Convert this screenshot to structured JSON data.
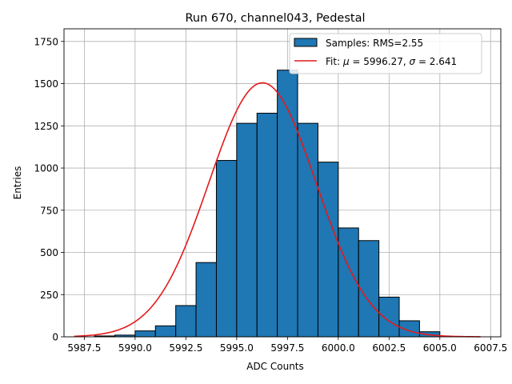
{
  "chart_data": {
    "type": "bar",
    "title": "Run 670, channel043, Pedestal",
    "xlabel": "ADC Counts",
    "ylabel": "Entries",
    "xlim": [
      5986.5,
      6008.0
    ],
    "ylim": [
      0,
      1825
    ],
    "grid": true,
    "legend_position": "top-right",
    "xticks": [
      "5987.5",
      "5990.0",
      "5992.5",
      "5995.0",
      "5997.5",
      "6000.0",
      "6002.5",
      "6005.0",
      "6007.5"
    ],
    "xtick_values": [
      5987.5,
      5990.0,
      5992.5,
      5995.0,
      5997.5,
      6000.0,
      6002.5,
      6005.0,
      6007.5
    ],
    "yticks": [
      "0",
      "250",
      "500",
      "750",
      "1000",
      "1250",
      "1500",
      "1750"
    ],
    "ytick_values": [
      0,
      250,
      500,
      750,
      1000,
      1250,
      1500,
      1750
    ],
    "histogram": {
      "name": "Samples: RMS=2.55",
      "bin_edges": [
        5988,
        5989,
        5990,
        5991,
        5992,
        5993,
        5994,
        5995,
        5996,
        5997,
        5998,
        5999,
        6000,
        6001,
        6002,
        6003,
        6004,
        6005
      ],
      "counts": [
        5,
        10,
        35,
        65,
        185,
        440,
        1045,
        1265,
        1325,
        1580,
        1265,
        1035,
        645,
        570,
        235,
        95,
        30,
        15
      ],
      "color": "#1f77b4",
      "edgecolor": "#000000"
    },
    "fit": {
      "name": "Fit: μ = 5996.27, σ = 2.641",
      "label_prefix": "Fit: ",
      "mu_symbol": "μ",
      "mu_text": " = 5996.27, ",
      "sigma_symbol": "σ",
      "sigma_text": " = 2.641",
      "mu": 5996.27,
      "sigma": 2.641,
      "amplitude": 1505,
      "x_range": [
        5987.0,
        6007.0
      ],
      "color": "#e41a1c"
    },
    "legend": [
      "Samples: RMS=2.55",
      "Fit: μ = 5996.27, σ = 2.641"
    ]
  }
}
